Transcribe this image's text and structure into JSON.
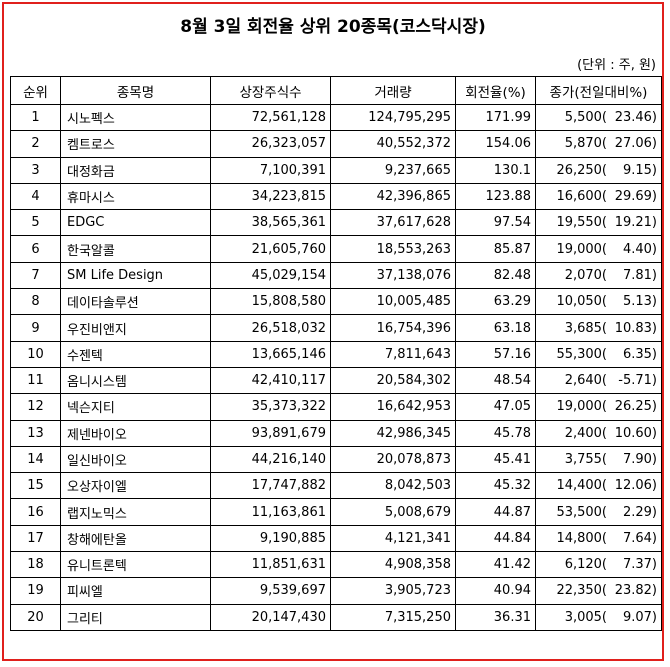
{
  "title": "8월 3일 회전율 상위 20종목(코스닥시장)",
  "unit_note": "(단위 : 주, 원)",
  "headers": {
    "rank": "순위",
    "name": "종목명",
    "listed_shares": "상장주식수",
    "volume": "거래량",
    "turnover": "회전율(%)",
    "close": "종가(전일대비%)"
  },
  "rows": [
    {
      "rank": "1",
      "name": "시노펙스",
      "shares": "72,561,128",
      "volume": "124,795,295",
      "turnover": "171.99",
      "price": "5,500(",
      "change": "23.46)"
    },
    {
      "rank": "2",
      "name": "켐트로스",
      "shares": "26,323,057",
      "volume": "40,552,372",
      "turnover": "154.06",
      "price": "5,870(",
      "change": "27.06)"
    },
    {
      "rank": "3",
      "name": "대정화금",
      "shares": "7,100,391",
      "volume": "9,237,665",
      "turnover": "130.1",
      "price": "26,250(",
      "change": "9.15)"
    },
    {
      "rank": "4",
      "name": "휴마시스",
      "shares": "34,223,815",
      "volume": "42,396,865",
      "turnover": "123.88",
      "price": "16,600(",
      "change": "29.69)"
    },
    {
      "rank": "5",
      "name": "EDGC",
      "shares": "38,565,361",
      "volume": "37,617,628",
      "turnover": "97.54",
      "price": "19,550(",
      "change": "19.21)"
    },
    {
      "rank": "6",
      "name": "한국알콜",
      "shares": "21,605,760",
      "volume": "18,553,263",
      "turnover": "85.87",
      "price": "19,000(",
      "change": "4.40)"
    },
    {
      "rank": "7",
      "name": "SM Life Design",
      "shares": "45,029,154",
      "volume": "37,138,076",
      "turnover": "82.48",
      "price": "2,070(",
      "change": "7.81)"
    },
    {
      "rank": "8",
      "name": "데이타솔루션",
      "shares": "15,808,580",
      "volume": "10,005,485",
      "turnover": "63.29",
      "price": "10,050(",
      "change": "5.13)"
    },
    {
      "rank": "9",
      "name": "우진비앤지",
      "shares": "26,518,032",
      "volume": "16,754,396",
      "turnover": "63.18",
      "price": "3,685(",
      "change": "10.83)"
    },
    {
      "rank": "10",
      "name": "수젠텍",
      "shares": "13,665,146",
      "volume": "7,811,643",
      "turnover": "57.16",
      "price": "55,300(",
      "change": "6.35)"
    },
    {
      "rank": "11",
      "name": "옴니시스템",
      "shares": "42,410,117",
      "volume": "20,584,302",
      "turnover": "48.54",
      "price": "2,640(",
      "change": "-5.71)"
    },
    {
      "rank": "12",
      "name": "넥슨지티",
      "shares": "35,373,322",
      "volume": "16,642,953",
      "turnover": "47.05",
      "price": "19,000(",
      "change": "26.25)"
    },
    {
      "rank": "13",
      "name": "제넨바이오",
      "shares": "93,891,679",
      "volume": "42,986,345",
      "turnover": "45.78",
      "price": "2,400(",
      "change": "10.60)"
    },
    {
      "rank": "14",
      "name": "일신바이오",
      "shares": "44,216,140",
      "volume": "20,078,873",
      "turnover": "45.41",
      "price": "3,755(",
      "change": "7.90)"
    },
    {
      "rank": "15",
      "name": "오상자이엘",
      "shares": "17,747,882",
      "volume": "8,042,503",
      "turnover": "45.32",
      "price": "14,400(",
      "change": "12.06)"
    },
    {
      "rank": "16",
      "name": "랩지노믹스",
      "shares": "11,163,861",
      "volume": "5,008,679",
      "turnover": "44.87",
      "price": "53,500(",
      "change": "2.29)"
    },
    {
      "rank": "17",
      "name": "창해에탄올",
      "shares": "9,190,885",
      "volume": "4,121,341",
      "turnover": "44.84",
      "price": "14,800(",
      "change": "7.64)"
    },
    {
      "rank": "18",
      "name": "유니트론텍",
      "shares": "11,851,631",
      "volume": "4,908,358",
      "turnover": "41.42",
      "price": "6,120(",
      "change": "7.37)"
    },
    {
      "rank": "19",
      "name": "피씨엘",
      "shares": "9,539,697",
      "volume": "3,905,723",
      "turnover": "40.94",
      "price": "22,350(",
      "change": "23.82)"
    },
    {
      "rank": "20",
      "name": "그리티",
      "shares": "20,147,430",
      "volume": "7,315,250",
      "turnover": "36.31",
      "price": "3,005(",
      "change": "9.07)"
    }
  ],
  "colors": {
    "frame_border": "#e0201c"
  }
}
